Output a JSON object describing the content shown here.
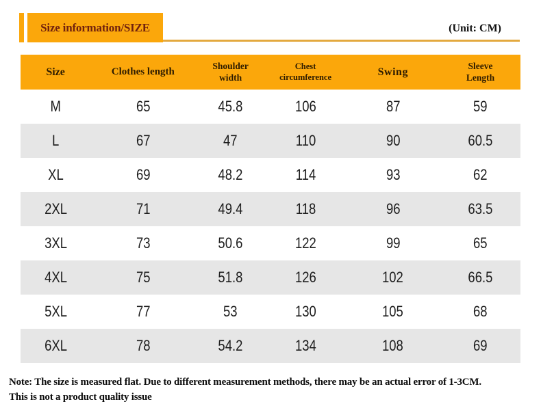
{
  "header": {
    "title": "Size information/SIZE",
    "unit": "(Unit: CM)"
  },
  "table": {
    "columns": [
      "Size",
      "Clothes length",
      "Shoulder\nwidth",
      "Chest\ncircumference",
      "Swing",
      "Sleeve\nLength"
    ],
    "rows": [
      [
        "M",
        "65",
        "45.8",
        "106",
        "87",
        "59"
      ],
      [
        "L",
        "67",
        "47",
        "110",
        "90",
        "60.5"
      ],
      [
        "XL",
        "69",
        "48.2",
        "114",
        "93",
        "62"
      ],
      [
        "2XL",
        "71",
        "49.4",
        "118",
        "96",
        "63.5"
      ],
      [
        "3XL",
        "73",
        "50.6",
        "122",
        "99",
        "65"
      ],
      [
        "4XL",
        "75",
        "51.8",
        "126",
        "102",
        "66.5"
      ],
      [
        "5XL",
        "77",
        "53",
        "130",
        "105",
        "68"
      ],
      [
        "6XL",
        "78",
        "54.2",
        "134",
        "108",
        "69"
      ]
    ]
  },
  "note": {
    "line1": "Note: The size is measured flat. Due to different measurement methods, there may be an actual error of 1-3CM.",
    "line2": "This is not a product quality issue"
  },
  "colors": {
    "accent_orange": "#FBA70B",
    "gold_line": "#E3A93F",
    "row_alt": "#E6E6E6",
    "title_text": "#71220E",
    "header_text": "#2E1C00",
    "value_text": "#1D1D1D"
  }
}
